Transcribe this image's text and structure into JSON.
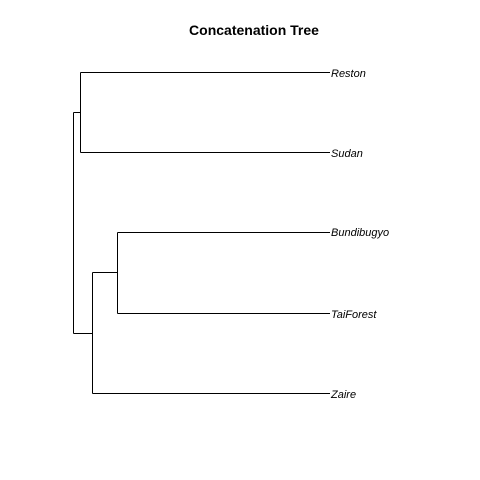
{
  "figure": {
    "title": "Concatenation Tree"
  },
  "tree": {
    "tips": [
      "Reston",
      "Sudan",
      "Bundibugyo",
      "TaiForest",
      "Zaire"
    ],
    "newick": "((Reston,Sudan),((Bundibugyo,TaiForest),Zaire));"
  },
  "colors": {
    "line": "#000000",
    "text": "#000000",
    "background": "#ffffff"
  }
}
